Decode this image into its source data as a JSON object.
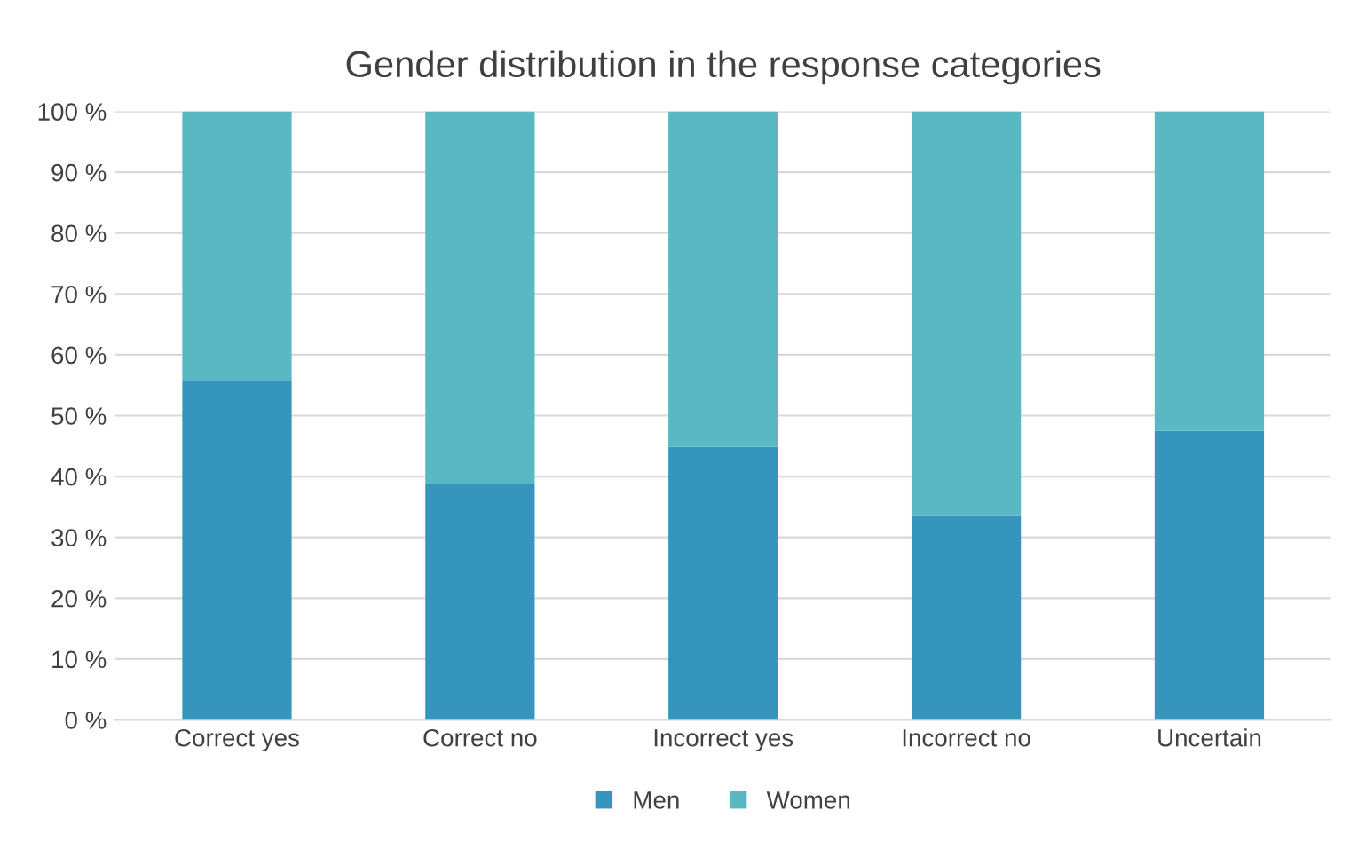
{
  "chart_data": {
    "type": "bar",
    "title": "Gender distribution in the response categories",
    "stacked": true,
    "categories": [
      "Correct yes",
      "Correct no",
      "Incorrect yes",
      "Incorrect no",
      "Uncertain"
    ],
    "series": [
      {
        "name": "Men",
        "color": "#3595bc",
        "values": [
          55.7,
          38.8,
          44.9,
          33.5,
          47.5
        ]
      },
      {
        "name": "Women",
        "color": "#5ab8c2",
        "values": [
          44.3,
          61.2,
          55.1,
          66.5,
          52.5
        ]
      }
    ],
    "ylim": [
      0,
      100
    ],
    "yticks": [
      {
        "value": 0,
        "label": "0 %"
      },
      {
        "value": 10,
        "label": "10 %"
      },
      {
        "value": 20,
        "label": "20 %"
      },
      {
        "value": 30,
        "label": "30 %"
      },
      {
        "value": 40,
        "label": "40 %"
      },
      {
        "value": 50,
        "label": "50 %"
      },
      {
        "value": 60,
        "label": "60 %"
      },
      {
        "value": 70,
        "label": "70 %"
      },
      {
        "value": 80,
        "label": "80 %"
      },
      {
        "value": 90,
        "label": "90 %"
      },
      {
        "value": 100,
        "label": "100 %"
      }
    ],
    "grid": "y",
    "legend": "bottom"
  }
}
